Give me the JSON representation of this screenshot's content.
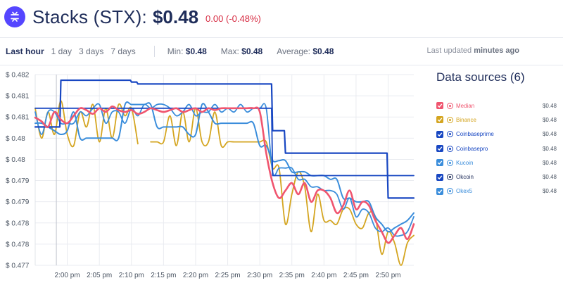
{
  "header": {
    "title": "Stacks (STX):",
    "price": "$0.48",
    "change_abs": "0.00",
    "change_pct": "-0.48%"
  },
  "toolbar": {
    "ranges": [
      {
        "label": "Last hour",
        "active": true
      },
      {
        "label": "1 day",
        "active": false
      },
      {
        "label": "3 days",
        "active": false
      },
      {
        "label": "7 days",
        "active": false
      }
    ],
    "min_label": "Min:",
    "min_value": "$0.48",
    "max_label": "Max:",
    "max_value": "$0.48",
    "avg_label": "Average:",
    "avg_value": "$0.48",
    "updated_label": "Last updated",
    "updated_value": "minutes ago"
  },
  "sources": {
    "title": "Data sources (6)",
    "items": [
      {
        "name": "Median",
        "price": "$0.48",
        "color": "#f0556f",
        "checkbox": "#f0556f",
        "icon": "median-icon"
      },
      {
        "name": "Binance",
        "price": "$0.48",
        "color": "#d4a520",
        "checkbox": "#d4a520",
        "icon": "binance-icon"
      },
      {
        "name": "Coinbaseprime",
        "price": "$0.48",
        "color": "#1847c2",
        "checkbox": "#1847c2",
        "icon": "coinbaseprime-icon"
      },
      {
        "name": "Coinbasepro",
        "price": "$0.48",
        "color": "#1847c2",
        "checkbox": "#1847c2",
        "icon": "coinbasepro-icon"
      },
      {
        "name": "Kucoin",
        "price": "$0.48",
        "color": "#3a8ddb",
        "checkbox": "#3a8ddb",
        "icon": "kucoin-icon"
      },
      {
        "name": "Okcoin",
        "price": "$0.48",
        "color": "#1f2d5a",
        "checkbox": "#1847c2",
        "icon": "okcoin-icon"
      },
      {
        "name": "Okex5",
        "price": "$0.48",
        "color": "#3a8ddb",
        "checkbox": "#3a8ddb",
        "icon": "okex5-icon"
      }
    ]
  },
  "chart_data": {
    "type": "line",
    "title": "",
    "xlabel": "",
    "ylabel": "",
    "x_tick_labels": [
      "2:00 pm",
      "2:05 pm",
      "2:10 pm",
      "2:15 pm",
      "2:20 pm",
      "2:25 pm",
      "2:30 pm",
      "2:35 pm",
      "2:40 pm",
      "2:45 pm",
      "2:50 pm"
    ],
    "y_tick_labels": [
      "$ 0.482",
      "$ 0.481",
      "$ 0.481",
      "$ 0.48",
      "$ 0.48",
      "$ 0.479",
      "$ 0.479",
      "$ 0.478",
      "$ 0.478",
      "$ 0.477"
    ],
    "ylim": [
      0.477,
      0.4821
    ],
    "xlim": [
      "1:55 pm",
      "2:54 pm"
    ],
    "grid": true,
    "x_minutes": [
      0,
      1,
      2,
      3,
      4,
      5,
      6,
      7,
      8,
      9,
      10,
      11,
      12,
      13,
      14,
      15,
      16,
      17,
      18,
      19,
      20,
      21,
      22,
      23,
      24,
      25,
      26,
      27,
      28,
      29,
      30,
      31,
      32,
      33,
      34,
      35,
      36,
      37,
      38,
      39,
      40,
      41,
      42,
      43,
      44,
      45,
      46,
      47,
      48,
      49,
      50,
      51,
      52,
      53,
      54,
      55,
      56,
      57,
      58,
      59
    ],
    "series": [
      {
        "name": "Median",
        "color": "#f0556f",
        "width": 2.6,
        "values": [
          0.48095,
          0.48085,
          0.4807,
          0.4811,
          0.4809,
          0.4808,
          0.481,
          0.4812,
          0.48115,
          0.48105,
          0.4812,
          0.4811,
          0.48125,
          0.48115,
          0.4811,
          0.48115,
          0.48105,
          0.4811,
          0.4812,
          0.48115,
          0.4811,
          0.48115,
          0.4812,
          0.4811,
          0.48115,
          0.4812,
          0.4811,
          0.4812,
          0.48115,
          0.4812,
          0.4812,
          0.4812,
          0.4812,
          0.4812,
          0.4812,
          0.4811,
          0.48,
          0.4792,
          0.4788,
          0.479,
          0.4792,
          0.4789,
          0.4792,
          0.4787,
          0.479,
          0.479,
          0.4788,
          0.4784,
          0.4786,
          0.479,
          0.4785,
          0.4787,
          0.4786,
          0.4782,
          0.4779,
          0.4776,
          0.4778,
          0.478,
          0.4777,
          0.4781
        ]
      },
      {
        "name": "Binance",
        "color": "#d4a520",
        "width": 1.8,
        "values": [
          0.4812,
          0.4804,
          0.4811,
          0.4805,
          0.4814,
          0.4805,
          0.4802,
          0.4811,
          0.4807,
          0.4813,
          0.4803,
          0.4812,
          0.4804,
          0.4813,
          0.481,
          0.4812,
          0.48025,
          null,
          0.4803,
          0.4803,
          0.4803,
          0.481,
          0.4802,
          0.4811,
          0.4803,
          0.4812,
          0.4803,
          0.4803,
          0.4811,
          0.4802,
          0.4803,
          0.4803,
          0.4803,
          0.4803,
          0.4803,
          0.4803,
          0.4803,
          0.4796,
          0.4796,
          0.4781,
          0.4789,
          0.4795,
          0.4791,
          0.4779,
          0.4789,
          0.4782,
          0.4782,
          0.4781,
          0.4785,
          0.4785,
          0.4781,
          0.478,
          0.4784,
          0.4783,
          0.4773,
          0.4779,
          0.4776,
          0.477,
          0.4776,
          0.4778
        ]
      },
      {
        "name": "Coinbaseprime",
        "color": "#1847c2",
        "width": 2.2,
        "values": [
          0.4807,
          0.4807,
          0.4807,
          0.4807,
          0.48195,
          0.48195,
          0.48195,
          0.48195,
          0.48195,
          0.48195,
          0.48195,
          0.48195,
          0.48195,
          0.48195,
          0.48195,
          0.4819,
          0.48185,
          0.48185,
          0.48185,
          0.48185,
          0.48185,
          0.48185,
          0.48185,
          0.48185,
          0.48185,
          0.48185,
          0.48185,
          0.48185,
          0.48185,
          0.48185,
          0.48185,
          0.48185,
          0.48185,
          0.48185,
          0.48185,
          0.48185,
          0.48185,
          0.4806,
          0.4806,
          0.48,
          0.48,
          0.48,
          0.48,
          0.48,
          0.48,
          0.48,
          0.48,
          0.48,
          0.48,
          0.48,
          0.48,
          0.48,
          0.48,
          0.48,
          0.48,
          0.4788,
          0.4788,
          0.4788,
          0.4788,
          0.4788
        ]
      },
      {
        "name": "Coinbasepro",
        "color": "#1847c2",
        "width": 1.8,
        "values": [
          0.4812,
          0.4812,
          0.4812,
          0.4812,
          0.4812,
          0.4812,
          0.4812,
          0.4812,
          0.4812,
          0.4812,
          0.4812,
          0.4812,
          0.4812,
          0.4812,
          0.4812,
          0.4812,
          0.4812,
          0.4812,
          0.4812,
          0.4812,
          0.4812,
          0.4812,
          0.4812,
          0.4812,
          0.4812,
          0.4812,
          0.4812,
          0.4812,
          0.4812,
          0.4812,
          0.4812,
          0.4812,
          0.4812,
          0.4812,
          0.4812,
          0.4812,
          0.4812,
          0.4794,
          0.4794,
          0.4794,
          0.4794,
          0.4794,
          0.4794,
          0.4794,
          0.4794,
          0.4794,
          0.4794,
          0.4794,
          0.4794,
          0.4794,
          0.4794,
          0.4794,
          0.4794,
          0.4794,
          0.4794,
          0.4794,
          0.4794,
          0.4794,
          0.4794,
          0.4794
        ]
      },
      {
        "name": "Kucoin",
        "color": "#3a8ddb",
        "width": 2.0,
        "values": [
          0.4808,
          0.4808,
          0.4807,
          0.4806,
          0.4805,
          0.4806,
          0.4811,
          0.4804,
          0.4804,
          0.4804,
          0.4804,
          0.4804,
          0.4804,
          0.4804,
          0.4813,
          0.4813,
          0.4813,
          0.4813,
          0.4813,
          0.4807,
          0.4807,
          0.4807,
          0.4807,
          0.4807,
          0.4805,
          0.4805,
          0.4813,
          0.4811,
          0.4808,
          0.4808,
          0.4808,
          0.4808,
          0.4808,
          0.4808,
          0.4808,
          0.4802,
          0.4802,
          0.4798,
          0.4798,
          0.4798,
          0.4795,
          0.4795,
          0.4795,
          0.4794,
          0.4794,
          0.4794,
          0.4793,
          0.4793,
          0.4788,
          0.4788,
          0.4787,
          0.4787,
          0.4787,
          0.4783,
          0.4781,
          0.4779,
          0.478,
          0.4781,
          0.4782,
          0.4784
        ]
      },
      {
        "name": "Okex5",
        "color": "#3a8ddb",
        "width": 1.8,
        "values": [
          0.4811,
          0.4805,
          0.4811,
          0.4811,
          0.4808,
          0.4808,
          0.4808,
          0.4811,
          0.481,
          0.4812,
          0.4813,
          0.4808,
          0.4811,
          0.4811,
          0.4808,
          0.4812,
          0.481,
          0.4813,
          0.4812,
          0.4813,
          0.4813,
          0.4812,
          0.481,
          0.4811,
          0.4813,
          0.481,
          0.4811,
          0.4811,
          0.4813,
          0.4811,
          0.4812,
          0.4811,
          0.4813,
          0.4811,
          0.4812,
          0.4812,
          0.4812,
          0.4795,
          0.4796,
          0.4796,
          0.4796,
          0.4793,
          0.4793,
          0.4791,
          0.4791,
          0.479,
          0.479,
          0.4789,
          0.4785,
          0.4788,
          0.4783,
          0.4785,
          0.4784,
          0.478,
          0.4779,
          0.478,
          0.4778,
          0.4778,
          0.4779,
          0.4783
        ]
      }
    ]
  }
}
